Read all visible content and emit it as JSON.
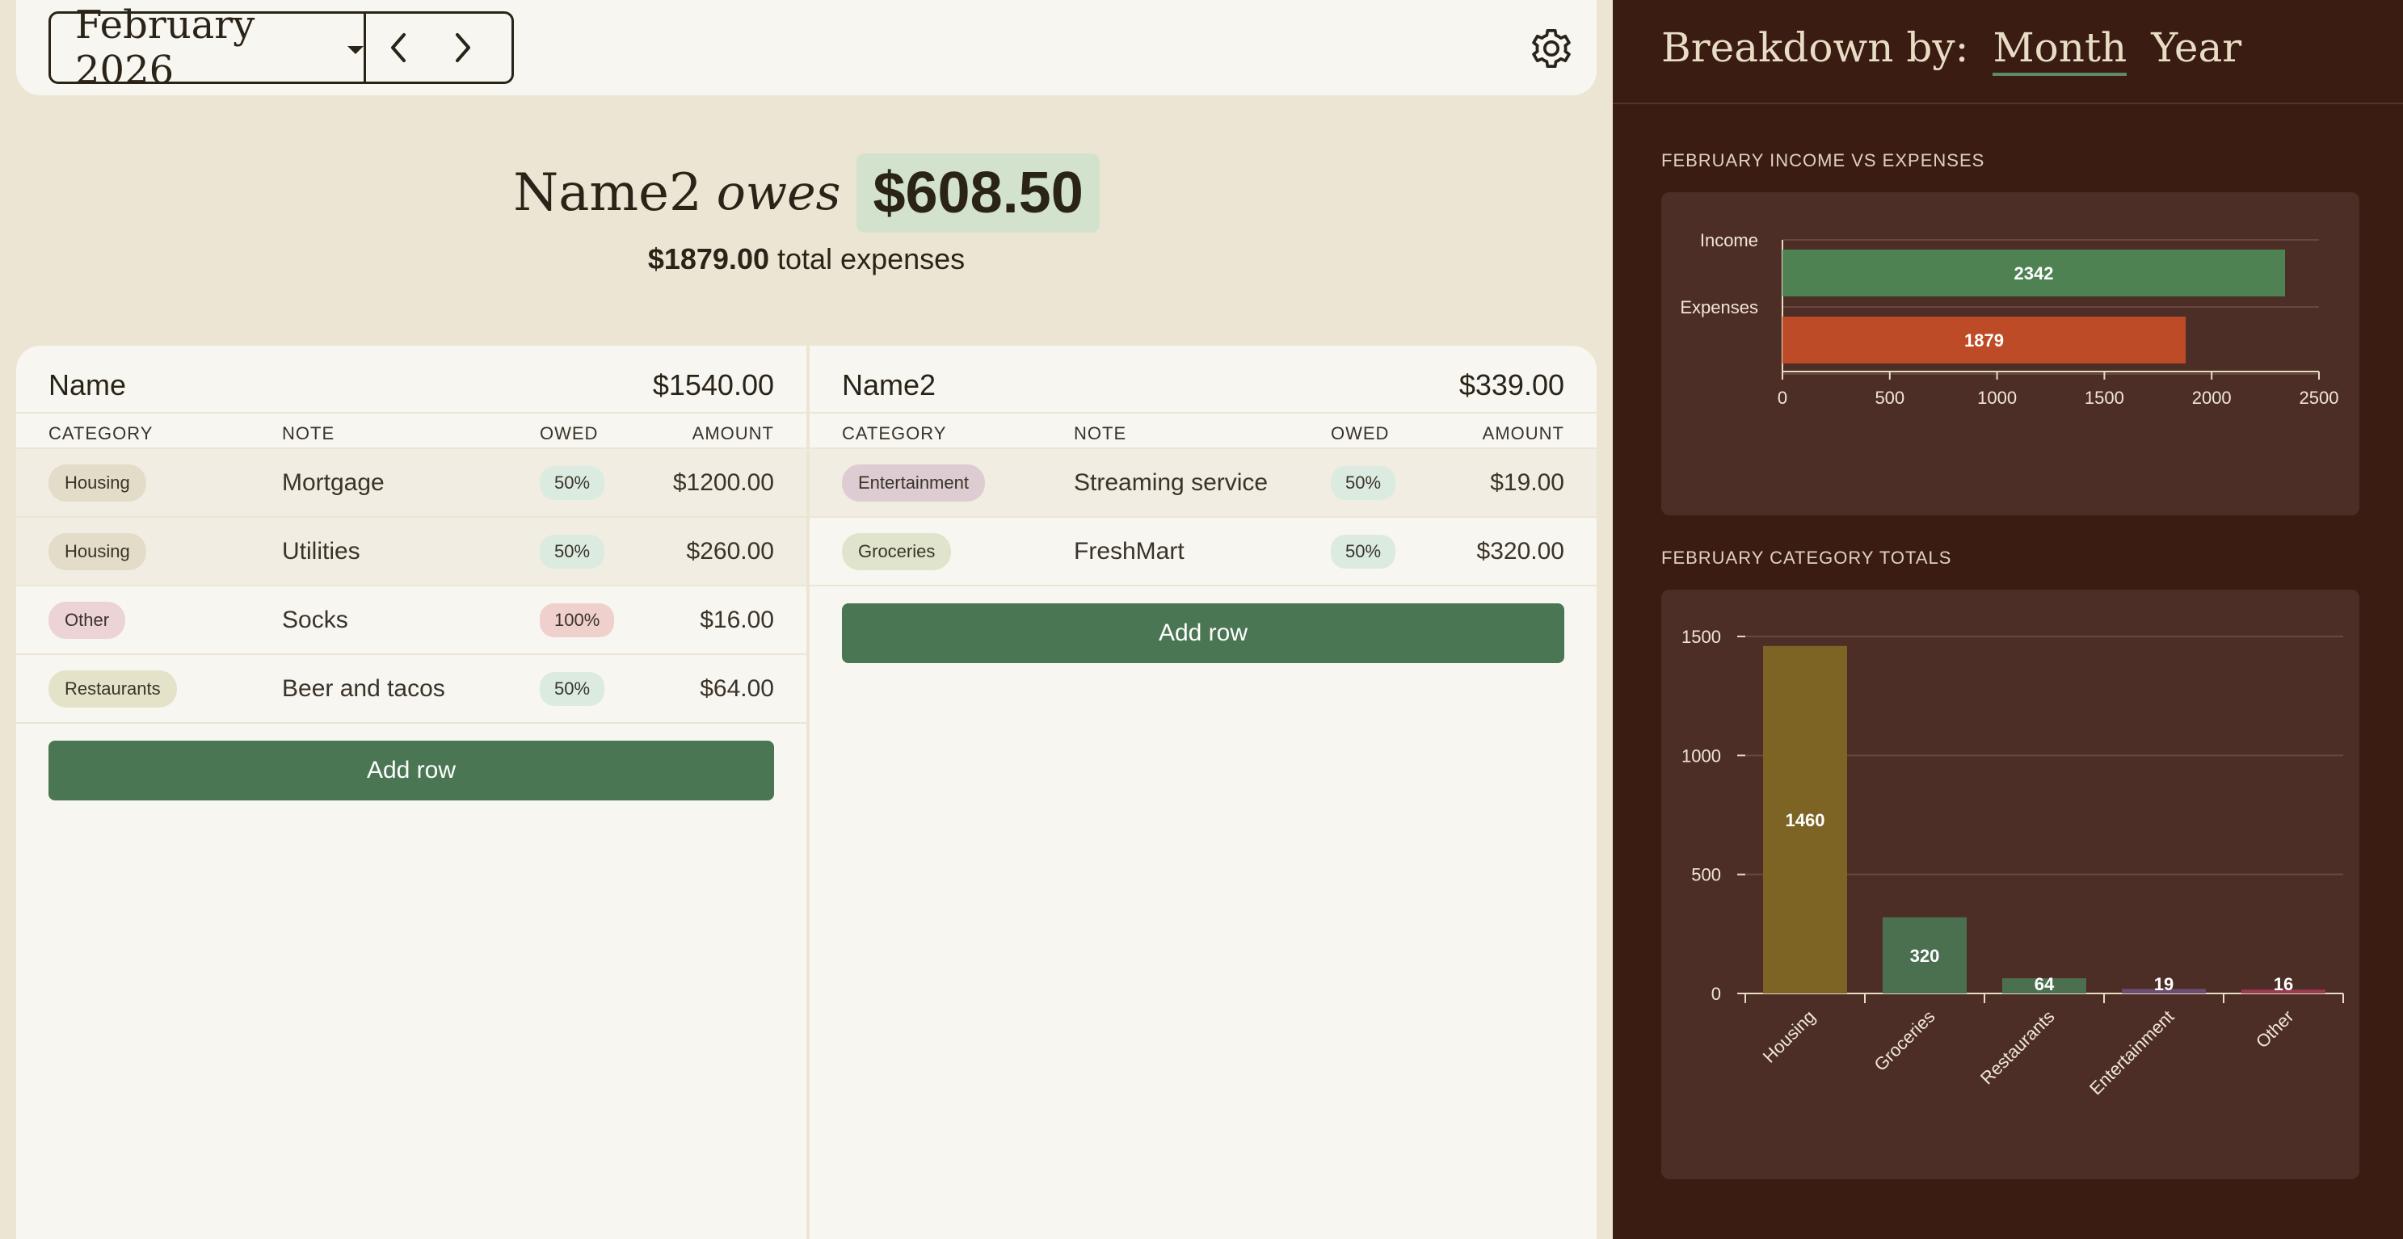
{
  "header": {
    "month": "February 2026",
    "prev_label": "previous-month",
    "next_label": "next-month"
  },
  "summary": {
    "debtor": "Name2",
    "owes_word": "owes",
    "owed_amount": "$608.50",
    "total_expenses": "$1879.00",
    "total_suffix": "total expenses"
  },
  "columns": {
    "category": "CATEGORY",
    "note": "NOTE",
    "owed": "OWED",
    "amount": "AMOUNT"
  },
  "left_panel": {
    "name": "Name",
    "total": "$1540.00",
    "rows": [
      {
        "category": "Housing",
        "note": "Mortgage",
        "owed": "50%",
        "amount": "$1200.00"
      },
      {
        "category": "Housing",
        "note": "Utilities",
        "owed": "50%",
        "amount": "$260.00"
      },
      {
        "category": "Other",
        "note": "Socks",
        "owed": "100%",
        "amount": "$16.00"
      },
      {
        "category": "Restaurants",
        "note": "Beer and tacos",
        "owed": "50%",
        "amount": "$64.00"
      }
    ],
    "add_row_label": "Add row"
  },
  "right_panel": {
    "name": "Name2",
    "total": "$339.00",
    "rows": [
      {
        "category": "Entertainment",
        "note": "Streaming service",
        "owed": "50%",
        "amount": "$19.00"
      },
      {
        "category": "Groceries",
        "note": "FreshMart",
        "owed": "50%",
        "amount": "$320.00"
      }
    ],
    "add_row_label": "Add row"
  },
  "category_colors": {
    "Housing": "#e3dcc8",
    "Other": "#ecd3d6",
    "Restaurants": "#e4e3c9",
    "Entertainment": "#ddccd2",
    "Groceries": "#e0e4cc"
  },
  "sidebar": {
    "breakdown_label": "Breakdown by:",
    "options": [
      "Month",
      "Year"
    ],
    "active_option": "Month",
    "income_title": "FEBRUARY INCOME VS EXPENSES",
    "category_title": "FEBRUARY CATEGORY TOTALS"
  },
  "chart_data": [
    {
      "type": "bar",
      "orientation": "horizontal",
      "categories": [
        "Income",
        "Expenses"
      ],
      "values": [
        2342,
        1879
      ],
      "colors": [
        "#4e8253",
        "#bd4b27"
      ],
      "xlim": [
        0,
        2500
      ],
      "xticks": [
        0,
        500,
        1000,
        1500,
        2000,
        2500
      ],
      "grid": true,
      "title": "FEBRUARY INCOME VS EXPENSES"
    },
    {
      "type": "bar",
      "categories": [
        "Housing",
        "Groceries",
        "Restaurants",
        "Entertainment",
        "Other"
      ],
      "values": [
        1460,
        320,
        64,
        19,
        16
      ],
      "colors": [
        "#7d6425",
        "#4a7050",
        "#4a7050",
        "#6a4d70",
        "#9c3a52"
      ],
      "ylim": [
        0,
        1500
      ],
      "yticks": [
        0,
        500,
        1000,
        1500
      ],
      "grid": true,
      "title": "FEBRUARY CATEGORY TOTALS"
    }
  ]
}
